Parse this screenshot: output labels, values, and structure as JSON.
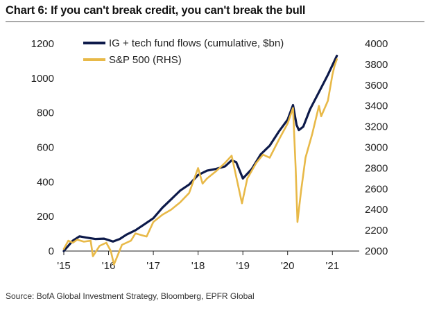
{
  "title": "Chart 6: If you can't break credit, you can't break the bull",
  "source": "Source:  BofA Global Investment Strategy, Bloomberg, EPFR Global",
  "chart_data": {
    "type": "line",
    "x_ticks": [
      "'15",
      "'16",
      "'17",
      "'18",
      "'19",
      "'20",
      "'21"
    ],
    "y_left": {
      "ticks": [
        0,
        200,
        400,
        600,
        800,
        1000,
        1200
      ],
      "ylim": [
        0,
        1200
      ]
    },
    "y_right": {
      "ticks": [
        2000,
        2200,
        2400,
        2600,
        2800,
        3000,
        3200,
        3400,
        3600,
        3800,
        4000
      ],
      "ylim": [
        2000,
        4000
      ]
    },
    "xlim": [
      2015.0,
      2021.6
    ],
    "grid": false,
    "legend_position": "top-left",
    "series": [
      {
        "name": "IG + tech fund flows (cumulative, $bn)",
        "axis": "left",
        "color": "#0d1a4a",
        "x": [
          2015.0,
          2015.2,
          2015.35,
          2015.5,
          2015.7,
          2015.9,
          2016.1,
          2016.25,
          2016.4,
          2016.6,
          2016.8,
          2017.0,
          2017.2,
          2017.4,
          2017.6,
          2017.8,
          2018.0,
          2018.2,
          2018.4,
          2018.6,
          2018.75,
          2018.85,
          2019.0,
          2019.2,
          2019.4,
          2019.6,
          2019.8,
          2020.0,
          2020.12,
          2020.2,
          2020.25,
          2020.35,
          2020.5,
          2020.7,
          2020.9,
          2021.1
        ],
        "values": [
          0,
          60,
          85,
          78,
          70,
          72,
          55,
          70,
          95,
          120,
          155,
          190,
          250,
          300,
          350,
          385,
          440,
          465,
          475,
          490,
          525,
          515,
          420,
          475,
          560,
          610,
          690,
          760,
          845,
          730,
          700,
          720,
          820,
          920,
          1020,
          1130
        ]
      },
      {
        "name": "S&P 500 (RHS)",
        "axis": "right",
        "color": "#e8b948",
        "x": [
          2015.0,
          2015.1,
          2015.2,
          2015.3,
          2015.45,
          2015.6,
          2015.65,
          2015.8,
          2015.95,
          2016.05,
          2016.12,
          2016.3,
          2016.5,
          2016.6,
          2016.85,
          2017.0,
          2017.2,
          2017.4,
          2017.6,
          2017.8,
          2018.0,
          2018.1,
          2018.2,
          2018.4,
          2018.6,
          2018.75,
          2018.85,
          2018.98,
          2019.1,
          2019.3,
          2019.45,
          2019.6,
          2019.8,
          2020.0,
          2020.12,
          2020.18,
          2020.22,
          2020.3,
          2020.4,
          2020.55,
          2020.7,
          2020.75,
          2020.9,
          2021.0,
          2021.05,
          2021.1
        ],
        "values": [
          2020,
          2100,
          2080,
          2110,
          2090,
          2100,
          1950,
          2050,
          2080,
          2000,
          1870,
          2060,
          2100,
          2170,
          2140,
          2280,
          2350,
          2400,
          2470,
          2560,
          2800,
          2650,
          2700,
          2770,
          2850,
          2920,
          2720,
          2460,
          2700,
          2850,
          2930,
          2900,
          3070,
          3230,
          3380,
          2800,
          2280,
          2580,
          2900,
          3130,
          3400,
          3300,
          3450,
          3700,
          3790,
          3850
        ]
      }
    ]
  }
}
